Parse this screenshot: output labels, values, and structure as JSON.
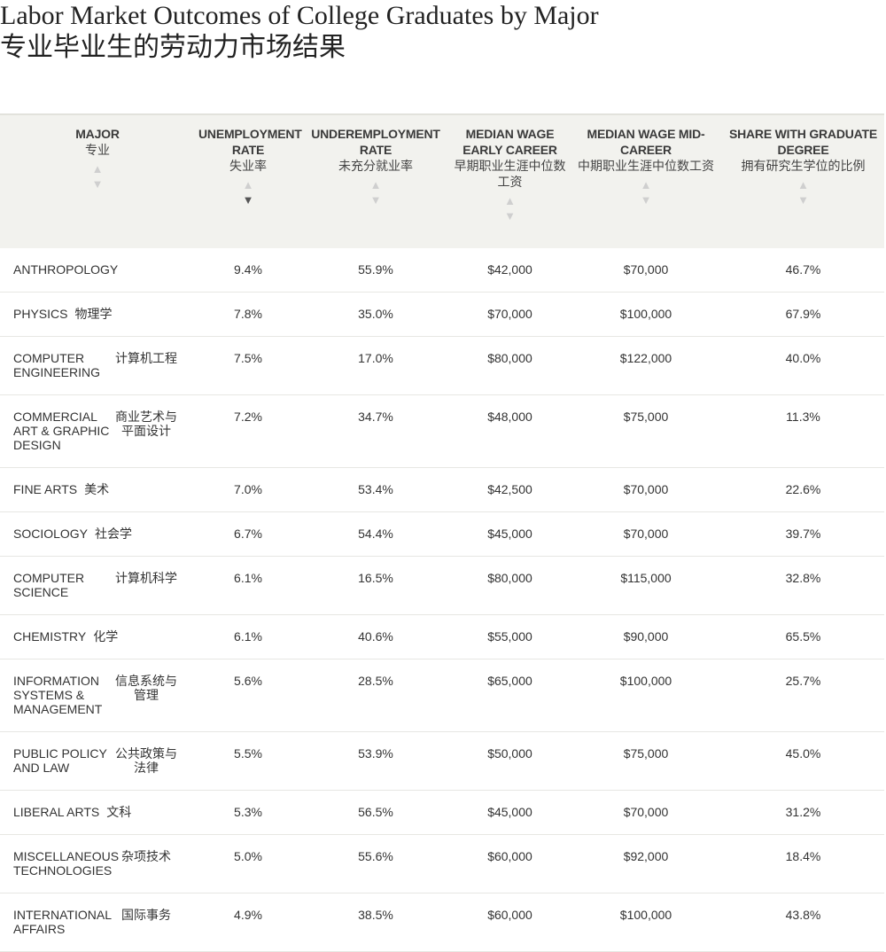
{
  "title_en": "Labor Market Outcomes of College Graduates by Major",
  "title_zh": "专业毕业生的劳动力市场结果",
  "columns": [
    {
      "en": "MAJOR",
      "zh": "专业"
    },
    {
      "en": "UNEMPLOYMENT RATE",
      "zh": "失业率"
    },
    {
      "en": "UNDEREMPLOYMENT RATE",
      "zh": "未充分就业率"
    },
    {
      "en": "MEDIAN WAGE EARLY CAREER",
      "zh": "早期职业生涯中位数工资"
    },
    {
      "en": "MEDIAN WAGE MID-CAREER",
      "zh": "中期职业生涯中位数工资"
    },
    {
      "en": "SHARE WITH GRADUATE DEGREE",
      "zh": "拥有研究生学位的比例"
    }
  ],
  "sort": {
    "active_column": "UNEMPLOYMENT RATE",
    "direction": "descending"
  },
  "rows": [
    {
      "major_en": "ANTHROPOLOGY",
      "major_zh": "",
      "unemployment": "9.4%",
      "underemployment": "55.9%",
      "wage_early": "$42,000",
      "wage_mid": "$70,000",
      "grad_share": "46.7%"
    },
    {
      "major_en": "PHYSICS",
      "major_zh": "物理学",
      "unemployment": "7.8%",
      "underemployment": "35.0%",
      "wage_early": "$70,000",
      "wage_mid": "$100,000",
      "grad_share": "67.9%"
    },
    {
      "major_en": "COMPUTER ENGINEERING",
      "major_zh": "计算机工程",
      "unemployment": "7.5%",
      "underemployment": "17.0%",
      "wage_early": "$80,000",
      "wage_mid": "$122,000",
      "grad_share": "40.0%"
    },
    {
      "major_en": "COMMERCIAL ART & GRAPHIC DESIGN",
      "major_zh": "商业艺术与平面设计",
      "unemployment": "7.2%",
      "underemployment": "34.7%",
      "wage_early": "$48,000",
      "wage_mid": "$75,000",
      "grad_share": "11.3%"
    },
    {
      "major_en": "FINE ARTS",
      "major_zh": "美术",
      "unemployment": "7.0%",
      "underemployment": "53.4%",
      "wage_early": "$42,500",
      "wage_mid": "$70,000",
      "grad_share": "22.6%"
    },
    {
      "major_en": "SOCIOLOGY",
      "major_zh": "社会学",
      "unemployment": "6.7%",
      "underemployment": "54.4%",
      "wage_early": "$45,000",
      "wage_mid": "$70,000",
      "grad_share": "39.7%"
    },
    {
      "major_en": "COMPUTER SCIENCE",
      "major_zh": "计算机科学",
      "unemployment": "6.1%",
      "underemployment": "16.5%",
      "wage_early": "$80,000",
      "wage_mid": "$115,000",
      "grad_share": "32.8%"
    },
    {
      "major_en": "CHEMISTRY",
      "major_zh": "化学",
      "unemployment": "6.1%",
      "underemployment": "40.6%",
      "wage_early": "$55,000",
      "wage_mid": "$90,000",
      "grad_share": "65.5%"
    },
    {
      "major_en": "INFORMATION SYSTEMS & MANAGEMENT",
      "major_zh": "信息系统与管理",
      "unemployment": "5.6%",
      "underemployment": "28.5%",
      "wage_early": "$65,000",
      "wage_mid": "$100,000",
      "grad_share": "25.7%"
    },
    {
      "major_en": "PUBLIC POLICY AND LAW",
      "major_zh": "公共政策与法律",
      "unemployment": "5.5%",
      "underemployment": "53.9%",
      "wage_early": "$50,000",
      "wage_mid": "$75,000",
      "grad_share": "45.0%"
    },
    {
      "major_en": "LIBERAL ARTS",
      "major_zh": "文科",
      "unemployment": "5.3%",
      "underemployment": "56.5%",
      "wage_early": "$45,000",
      "wage_mid": "$70,000",
      "grad_share": "31.2%"
    },
    {
      "major_en": "MISCELLANEOUS TECHNOLOGIES",
      "major_zh": "杂项技术",
      "unemployment": "5.0%",
      "underemployment": "55.6%",
      "wage_early": "$60,000",
      "wage_mid": "$92,000",
      "grad_share": "18.4%"
    },
    {
      "major_en": "INTERNATIONAL AFFAIRS",
      "major_zh": "国际事务",
      "unemployment": "4.9%",
      "underemployment": "38.5%",
      "wage_early": "$60,000",
      "wage_mid": "$100,000",
      "grad_share": "43.8%"
    }
  ]
}
